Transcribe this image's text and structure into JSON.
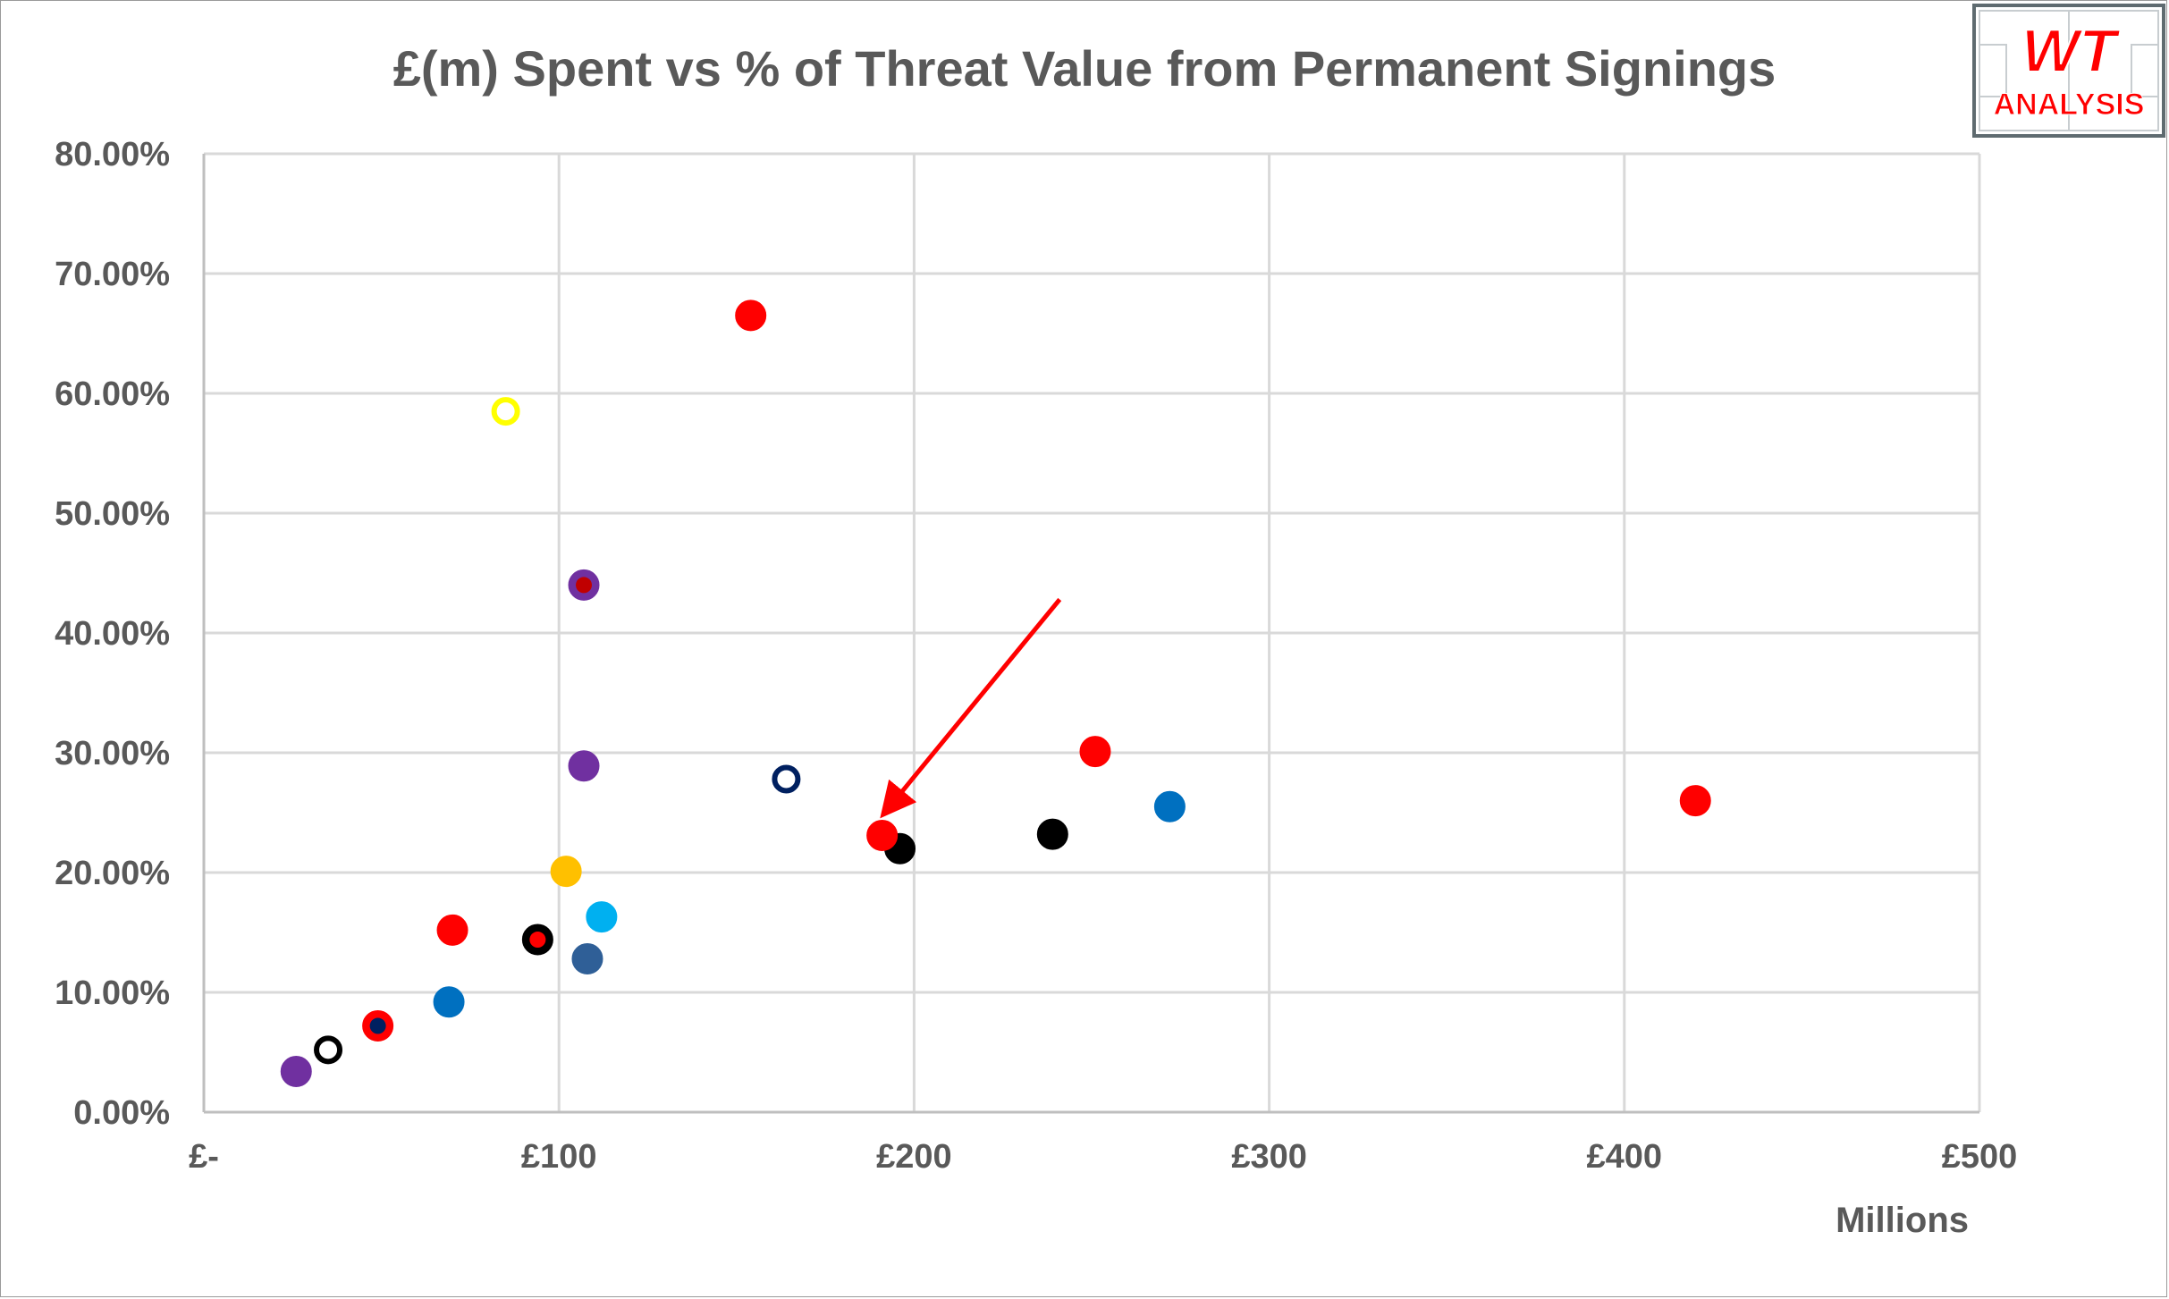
{
  "chart_data": {
    "type": "scatter",
    "title": "£(m) Spent vs % of Threat Value from Permanent Signings",
    "xlabel": "Millions",
    "ylabel": "",
    "xlim": [
      0,
      500
    ],
    "ylim": [
      0,
      0.8
    ],
    "x_tick_labels": [
      "£-",
      "£100",
      "£200",
      "£300",
      "£400",
      "£500"
    ],
    "x_ticks": [
      0,
      100,
      200,
      300,
      400,
      500
    ],
    "y_tick_labels": [
      "0.00%",
      "10.00%",
      "20.00%",
      "30.00%",
      "40.00%",
      "50.00%",
      "60.00%",
      "70.00%",
      "80.00%"
    ],
    "y_ticks": [
      0,
      0.1,
      0.2,
      0.3,
      0.4,
      0.5,
      0.6,
      0.7,
      0.8
    ],
    "grid": "vertical and horizontal",
    "legend": "none",
    "points": [
      {
        "x": 26,
        "y": 0.034,
        "fill": "#7030A0",
        "stroke": "#7030A0",
        "inner": ""
      },
      {
        "x": 35,
        "y": 0.052,
        "fill": "#FFFFFF",
        "stroke": "#000000",
        "inner": ""
      },
      {
        "x": 49,
        "y": 0.072,
        "fill": "#FF0000",
        "stroke": "#FF0000",
        "inner": "#002060"
      },
      {
        "x": 69,
        "y": 0.092,
        "fill": "#0070C0",
        "stroke": "#0070C0",
        "inner": ""
      },
      {
        "x": 70,
        "y": 0.152,
        "fill": "#FF0000",
        "stroke": "#FF0000",
        "inner": ""
      },
      {
        "x": 85,
        "y": 0.585,
        "fill": "#FFFFFF",
        "stroke": "#FFFF00",
        "inner": ""
      },
      {
        "x": 94,
        "y": 0.144,
        "fill": "#000000",
        "stroke": "#000000",
        "inner": "#FF0000"
      },
      {
        "x": 102,
        "y": 0.201,
        "fill": "#FFC000",
        "stroke": "#FFC000",
        "inner": ""
      },
      {
        "x": 107,
        "y": 0.44,
        "fill": "#7030A0",
        "stroke": "#7030A0",
        "inner": "#C00000"
      },
      {
        "x": 107,
        "y": 0.289,
        "fill": "#7030A0",
        "stroke": "#7030A0",
        "inner": ""
      },
      {
        "x": 108,
        "y": 0.128,
        "fill": "#2F5F97",
        "stroke": "#2F5F97",
        "inner": ""
      },
      {
        "x": 112,
        "y": 0.163,
        "fill": "#00B0F0",
        "stroke": "#00B0F0",
        "inner": ""
      },
      {
        "x": 154,
        "y": 0.665,
        "fill": "#FF0000",
        "stroke": "#FF0000",
        "inner": ""
      },
      {
        "x": 164,
        "y": 0.278,
        "fill": "#FFFFFF",
        "stroke": "#002060",
        "inner": ""
      },
      {
        "x": 196,
        "y": 0.22,
        "fill": "#000000",
        "stroke": "#000000",
        "inner": ""
      },
      {
        "x": 191,
        "y": 0.231,
        "fill": "#FF0000",
        "stroke": "#FF0000",
        "inner": ""
      },
      {
        "x": 239,
        "y": 0.232,
        "fill": "#000000",
        "stroke": "#000000",
        "inner": ""
      },
      {
        "x": 251,
        "y": 0.301,
        "fill": "#FF0000",
        "stroke": "#FF0000",
        "inner": ""
      },
      {
        "x": 272,
        "y": 0.255,
        "fill": "#0070C0",
        "stroke": "#0070C0",
        "inner": ""
      },
      {
        "x": 420,
        "y": 0.26,
        "fill": "#FF0000",
        "stroke": "#FF0000",
        "inner": ""
      }
    ],
    "annotations": [
      {
        "type": "arrow",
        "color": "#FF0000",
        "from": [
          241,
          0.428
        ],
        "to": [
          192,
          0.251
        ]
      }
    ]
  },
  "logo": {
    "line1": "WT",
    "line2": "ANALYSIS",
    "color": "#FF0000",
    "border_color": "#5F6B70"
  },
  "colors": {
    "grid": "#D9D9D9",
    "axis": "#BFBFBF",
    "text": "#595959"
  }
}
